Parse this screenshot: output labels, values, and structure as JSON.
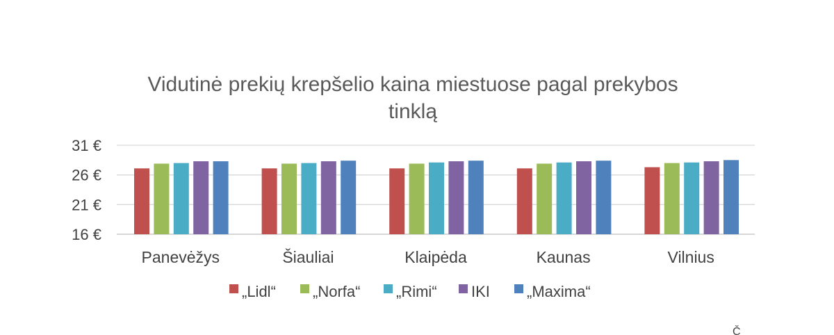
{
  "chart_data": {
    "type": "bar",
    "title_lines": [
      "Vidutinė prekių krepšelio kaina miestuose pagal prekybos",
      "tinklą"
    ],
    "categories": [
      "Panevėžys",
      "Šiauliai",
      "Klaipėda",
      "Kaunas",
      "Vilnius"
    ],
    "series": [
      {
        "name": "„Lidl“",
        "color": "#c0504d",
        "values": [
          27.1,
          27.1,
          27.1,
          27.1,
          27.3
        ]
      },
      {
        "name": "„Norfa“",
        "color": "#9bbb59",
        "values": [
          27.9,
          27.9,
          27.9,
          27.9,
          28.0
        ]
      },
      {
        "name": "„Rimi“",
        "color": "#4bacc6",
        "values": [
          28.0,
          28.0,
          28.1,
          28.1,
          28.1
        ]
      },
      {
        "name": "IKI",
        "color": "#8064a2",
        "values": [
          28.3,
          28.3,
          28.3,
          28.3,
          28.3
        ]
      },
      {
        "name": "„Maxima“",
        "color": "#4f81bd",
        "values": [
          28.3,
          28.4,
          28.4,
          28.4,
          28.5
        ]
      }
    ],
    "yticks": [
      "16 €",
      "21 €",
      "26 €",
      "31 €"
    ],
    "ytick_values": [
      16,
      21,
      26,
      31
    ],
    "ylim": [
      16,
      31
    ],
    "grid": true,
    "legend_position": "bottom",
    "corner_mark": "Č"
  }
}
